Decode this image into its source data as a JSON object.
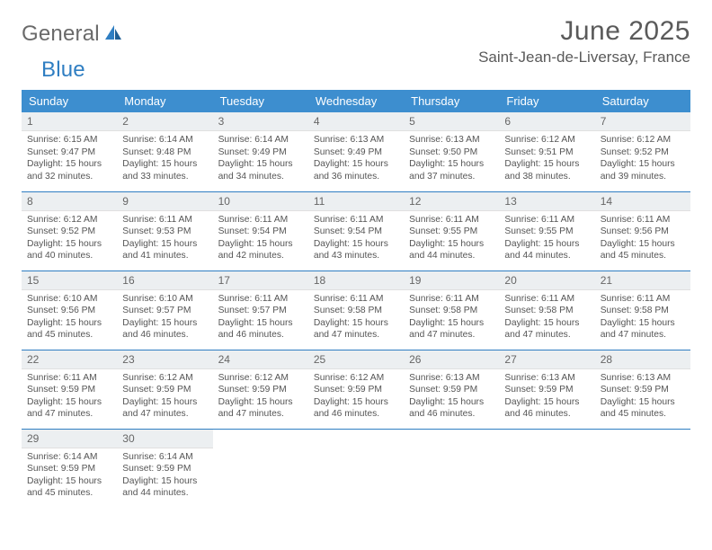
{
  "brand": {
    "name1": "General",
    "name2": "Blue"
  },
  "title": "June 2025",
  "location": "Saint-Jean-de-Liversay, France",
  "colors": {
    "header_bg": "#3d8ecf",
    "row_divider": "#2f7ec2",
    "daynum_bg": "#eceff1",
    "text": "#555555",
    "page_bg": "#ffffff"
  },
  "typography": {
    "body_pt": 10,
    "daynum_pt": 12,
    "weekday_pt": 13,
    "title_pt": 30,
    "location_pt": 17
  },
  "weekdays": [
    "Sunday",
    "Monday",
    "Tuesday",
    "Wednesday",
    "Thursday",
    "Friday",
    "Saturday"
  ],
  "weeks": [
    [
      {
        "n": "1",
        "sunrise": "6:15 AM",
        "sunset": "9:47 PM",
        "day_h": "15",
        "day_m": "32"
      },
      {
        "n": "2",
        "sunrise": "6:14 AM",
        "sunset": "9:48 PM",
        "day_h": "15",
        "day_m": "33"
      },
      {
        "n": "3",
        "sunrise": "6:14 AM",
        "sunset": "9:49 PM",
        "day_h": "15",
        "day_m": "34"
      },
      {
        "n": "4",
        "sunrise": "6:13 AM",
        "sunset": "9:49 PM",
        "day_h": "15",
        "day_m": "36"
      },
      {
        "n": "5",
        "sunrise": "6:13 AM",
        "sunset": "9:50 PM",
        "day_h": "15",
        "day_m": "37"
      },
      {
        "n": "6",
        "sunrise": "6:12 AM",
        "sunset": "9:51 PM",
        "day_h": "15",
        "day_m": "38"
      },
      {
        "n": "7",
        "sunrise": "6:12 AM",
        "sunset": "9:52 PM",
        "day_h": "15",
        "day_m": "39"
      }
    ],
    [
      {
        "n": "8",
        "sunrise": "6:12 AM",
        "sunset": "9:52 PM",
        "day_h": "15",
        "day_m": "40"
      },
      {
        "n": "9",
        "sunrise": "6:11 AM",
        "sunset": "9:53 PM",
        "day_h": "15",
        "day_m": "41"
      },
      {
        "n": "10",
        "sunrise": "6:11 AM",
        "sunset": "9:54 PM",
        "day_h": "15",
        "day_m": "42"
      },
      {
        "n": "11",
        "sunrise": "6:11 AM",
        "sunset": "9:54 PM",
        "day_h": "15",
        "day_m": "43"
      },
      {
        "n": "12",
        "sunrise": "6:11 AM",
        "sunset": "9:55 PM",
        "day_h": "15",
        "day_m": "44"
      },
      {
        "n": "13",
        "sunrise": "6:11 AM",
        "sunset": "9:55 PM",
        "day_h": "15",
        "day_m": "44"
      },
      {
        "n": "14",
        "sunrise": "6:11 AM",
        "sunset": "9:56 PM",
        "day_h": "15",
        "day_m": "45"
      }
    ],
    [
      {
        "n": "15",
        "sunrise": "6:10 AM",
        "sunset": "9:56 PM",
        "day_h": "15",
        "day_m": "45"
      },
      {
        "n": "16",
        "sunrise": "6:10 AM",
        "sunset": "9:57 PM",
        "day_h": "15",
        "day_m": "46"
      },
      {
        "n": "17",
        "sunrise": "6:11 AM",
        "sunset": "9:57 PM",
        "day_h": "15",
        "day_m": "46"
      },
      {
        "n": "18",
        "sunrise": "6:11 AM",
        "sunset": "9:58 PM",
        "day_h": "15",
        "day_m": "47"
      },
      {
        "n": "19",
        "sunrise": "6:11 AM",
        "sunset": "9:58 PM",
        "day_h": "15",
        "day_m": "47"
      },
      {
        "n": "20",
        "sunrise": "6:11 AM",
        "sunset": "9:58 PM",
        "day_h": "15",
        "day_m": "47"
      },
      {
        "n": "21",
        "sunrise": "6:11 AM",
        "sunset": "9:58 PM",
        "day_h": "15",
        "day_m": "47"
      }
    ],
    [
      {
        "n": "22",
        "sunrise": "6:11 AM",
        "sunset": "9:59 PM",
        "day_h": "15",
        "day_m": "47"
      },
      {
        "n": "23",
        "sunrise": "6:12 AM",
        "sunset": "9:59 PM",
        "day_h": "15",
        "day_m": "47"
      },
      {
        "n": "24",
        "sunrise": "6:12 AM",
        "sunset": "9:59 PM",
        "day_h": "15",
        "day_m": "47"
      },
      {
        "n": "25",
        "sunrise": "6:12 AM",
        "sunset": "9:59 PM",
        "day_h": "15",
        "day_m": "46"
      },
      {
        "n": "26",
        "sunrise": "6:13 AM",
        "sunset": "9:59 PM",
        "day_h": "15",
        "day_m": "46"
      },
      {
        "n": "27",
        "sunrise": "6:13 AM",
        "sunset": "9:59 PM",
        "day_h": "15",
        "day_m": "46"
      },
      {
        "n": "28",
        "sunrise": "6:13 AM",
        "sunset": "9:59 PM",
        "day_h": "15",
        "day_m": "45"
      }
    ],
    [
      {
        "n": "29",
        "sunrise": "6:14 AM",
        "sunset": "9:59 PM",
        "day_h": "15",
        "day_m": "45"
      },
      {
        "n": "30",
        "sunrise": "6:14 AM",
        "sunset": "9:59 PM",
        "day_h": "15",
        "day_m": "44"
      },
      null,
      null,
      null,
      null,
      null
    ]
  ],
  "labels": {
    "sunrise": "Sunrise: ",
    "sunset": "Sunset: ",
    "daylight_pre": "Daylight: ",
    "daylight_mid": " hours and ",
    "daylight_post": " minutes."
  }
}
